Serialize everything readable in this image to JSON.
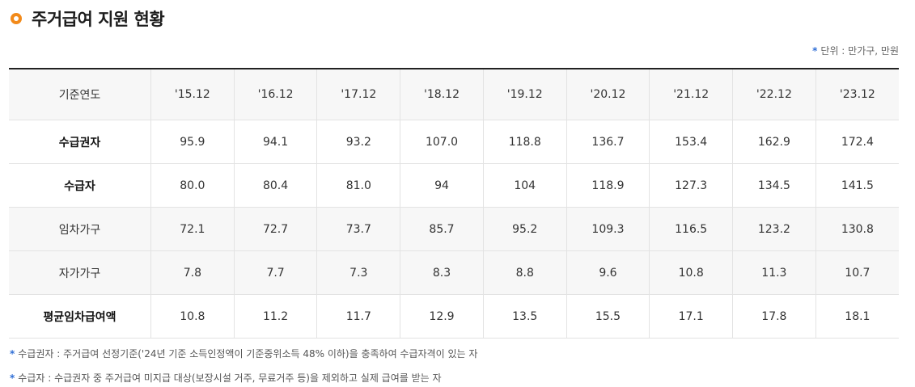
{
  "title": "주거급여 지원 현황",
  "unit_note": {
    "marker": "*",
    "text": "단위 : 만가구, 만원"
  },
  "table": {
    "header_label": "기준연도",
    "years": [
      "'15.12",
      "'16.12",
      "'17.12",
      "'18.12",
      "'19.12",
      "'20.12",
      "'21.12",
      "'22.12",
      "'23.12"
    ],
    "rows": [
      {
        "label": "수급권자",
        "values": [
          "95.9",
          "94.1",
          "93.2",
          "107.0",
          "118.8",
          "136.7",
          "153.4",
          "162.9",
          "172.4"
        ]
      },
      {
        "label": "수급자",
        "values": [
          "80.0",
          "80.4",
          "81.0",
          "94",
          "104",
          "118.9",
          "127.3",
          "134.5",
          "141.5"
        ]
      },
      {
        "label": "임차가구",
        "values": [
          "72.1",
          "72.7",
          "73.7",
          "85.7",
          "95.2",
          "109.3",
          "116.5",
          "123.2",
          "130.8"
        ]
      },
      {
        "label": "자가가구",
        "values": [
          "7.8",
          "7.7",
          "7.3",
          "8.3",
          "8.8",
          "9.6",
          "10.8",
          "11.3",
          "10.7"
        ]
      },
      {
        "label": "평균임차급여액",
        "values": [
          "10.8",
          "11.2",
          "11.7",
          "12.9",
          "13.5",
          "15.5",
          "17.1",
          "17.8",
          "18.1"
        ]
      }
    ]
  },
  "notes": [
    {
      "marker": "*",
      "text": "수급권자 : 주거급여 선정기준('24년 기준 소득인정액이 기준중위소득 48% 이하)을 충족하여 수급자격이 있는 자"
    },
    {
      "marker": "*",
      "text": "수급자 : 수급권자 중 주거급여 미지급 대상(보장시설 거주, 무료거주 등)을 제외하고 실제 급여를 받는 자"
    }
  ]
}
